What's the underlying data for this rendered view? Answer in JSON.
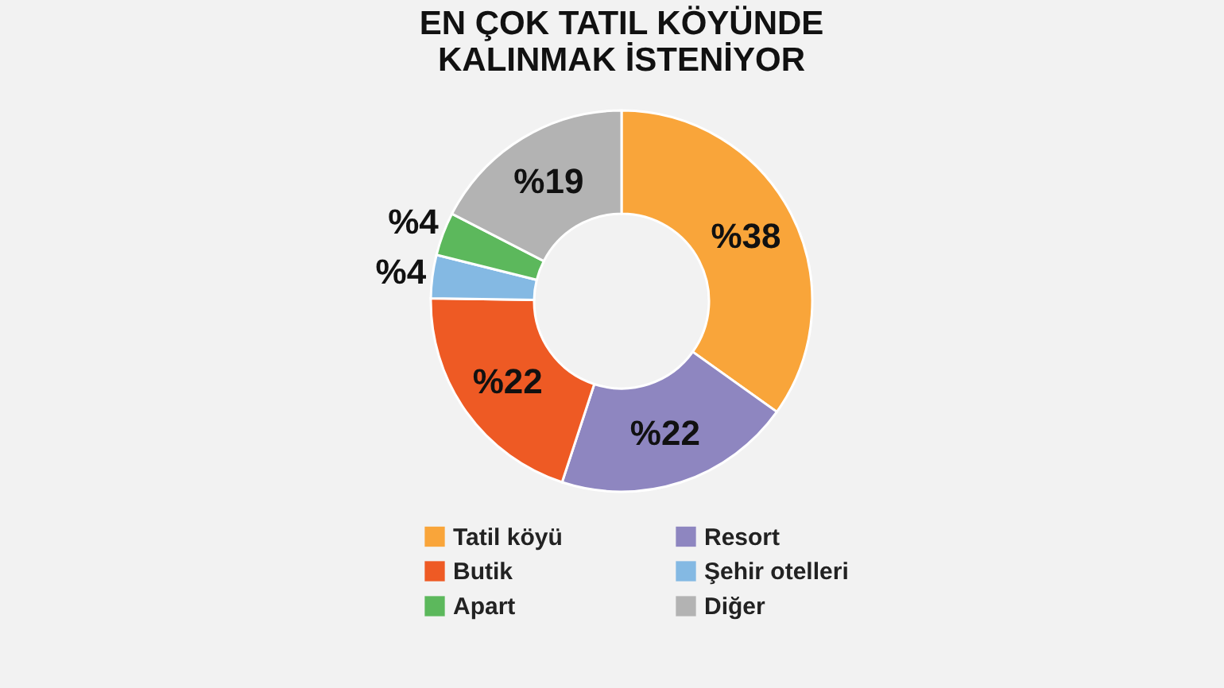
{
  "chart_data": {
    "type": "donut",
    "title": "EN ÇOK TATIL KÖYÜNDE\nKALINMAK İSTENİYOR",
    "categories": [
      "Tatil köyü",
      "Resort",
      "Butik",
      "Şehir otelleri",
      "Apart",
      "Diğer"
    ],
    "values": [
      38,
      22,
      22,
      4,
      4,
      19
    ],
    "value_labels": [
      "%38",
      "%22",
      "%22",
      "%4",
      "%4",
      "%19"
    ],
    "colors": [
      "#f9a53a",
      "#8e86c0",
      "#ee5a24",
      "#84b9e3",
      "#5cb85c",
      "#b3b3b3"
    ],
    "legend": "bottom"
  }
}
